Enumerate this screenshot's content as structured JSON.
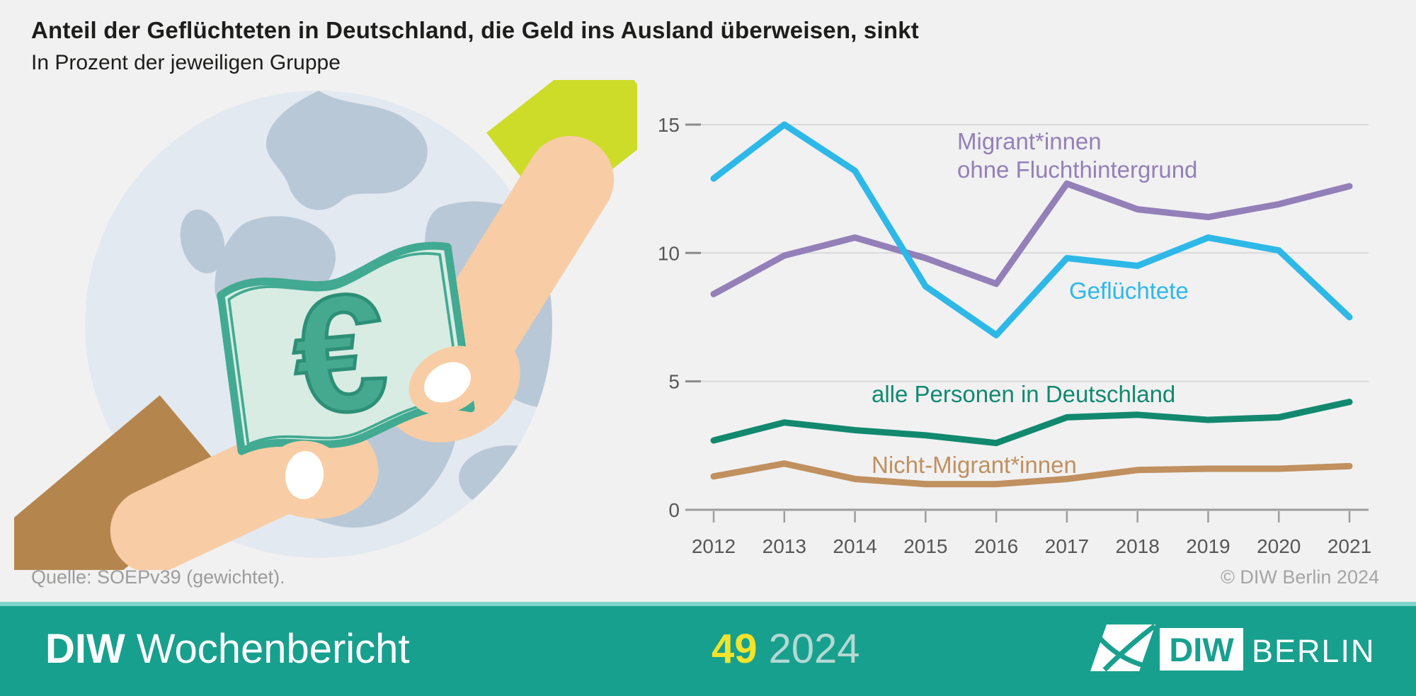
{
  "header": {
    "title": "Anteil der Geflüchteten in Deutschland, die Geld ins Ausland überweisen, sinkt",
    "subtitle": "In Prozent der jeweiligen Gruppe"
  },
  "illustration": {
    "description": "Zwei Hände reichen einen Euro-Geldschein über einem Globus weiter",
    "euro_symbol": "€"
  },
  "chart_data": {
    "type": "line",
    "x": [
      "2012",
      "2013",
      "2014",
      "2015",
      "2016",
      "2017",
      "2018",
      "2019",
      "2020",
      "2021"
    ],
    "series": [
      {
        "name": "Nicht-Migrant*innen",
        "color": "#c0905f",
        "label_lines": [
          "Nicht-Migrant*innen"
        ],
        "values": [
          1.3,
          1.8,
          1.2,
          1.0,
          1.0,
          1.2,
          1.55,
          1.6,
          1.6,
          1.7
        ]
      },
      {
        "name": "alle Personen in Deutschland",
        "color": "#12896f",
        "label_lines": [
          "alle Personen in Deutschland"
        ],
        "values": [
          2.7,
          3.4,
          3.1,
          2.9,
          2.6,
          3.6,
          3.7,
          3.5,
          3.6,
          4.2
        ]
      },
      {
        "name": "Migrant*innen ohne Fluchthintergrund",
        "color": "#9480b8",
        "label_lines": [
          "Migrant*innen",
          "ohne Fluchthintergrund"
        ],
        "values": [
          8.4,
          9.9,
          10.6,
          9.8,
          8.8,
          12.7,
          11.7,
          11.4,
          11.9,
          12.6
        ]
      },
      {
        "name": "Geflüchtete",
        "color": "#2eb8e8",
        "label_lines": [
          "Geflüchtete"
        ],
        "values": [
          12.9,
          15.0,
          13.2,
          8.7,
          6.8,
          9.8,
          9.5,
          10.6,
          10.1,
          7.5
        ]
      }
    ],
    "title": "Anteil der Geflüchteten in Deutschland, die Geld ins Ausland überweisen, sinkt",
    "xlabel": "",
    "ylabel": "In Prozent der jeweiligen Gruppe",
    "ylim": [
      0,
      15.8
    ],
    "yticks": [
      0,
      5,
      10,
      15
    ],
    "grid": "horizontal",
    "legend_position": "inline-labels"
  },
  "source": "Quelle: SOEPv39 (gewichtet).",
  "copyright": "© DIW Berlin 2024",
  "footer": {
    "publication_bold": "DIW",
    "publication": "Wochenbericht",
    "issue": "49",
    "year": "2024",
    "logo_diw": "DIW",
    "logo_berlin": "BERLIN"
  },
  "colors": {
    "background": "#f1f1f2",
    "text": "#1d1d1b",
    "axis_text": "#575756",
    "grid_line": "#d9d9d9",
    "grid_stub": "#8a8a8a",
    "axis_line": "#9d9d9c",
    "footer_background": "#18a08e",
    "footer_strip": "#7fd5c9",
    "issue_yellow": "#f2e32b",
    "issue_year": "#b5d8d2",
    "banknote_fill": "#d8ece3",
    "banknote_border": "#42aa92",
    "globe": "#e3e9f0",
    "continents": "#b9c8d7",
    "skin_light": "#f8cda5",
    "skin_brown": "#b5854e",
    "sleeve_lime": "#ccdc28"
  }
}
